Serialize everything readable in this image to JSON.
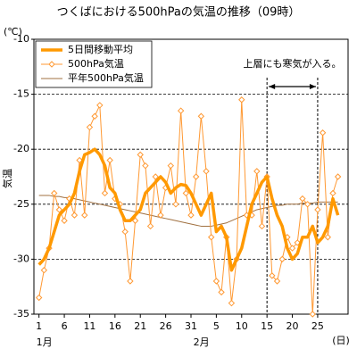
{
  "chart_data": {
    "type": "line",
    "title": "つくばにおける500hPaの気温の推移（09時）",
    "y_unit": "(℃)",
    "ylabel": "気温",
    "x_unit": "(日)",
    "months": [
      {
        "label": "1月",
        "x": 1
      },
      {
        "label": "2月",
        "x": 32
      }
    ],
    "x": [
      1,
      2,
      3,
      4,
      5,
      6,
      7,
      8,
      9,
      10,
      11,
      12,
      13,
      14,
      15,
      16,
      17,
      18,
      19,
      20,
      21,
      22,
      23,
      24,
      25,
      26,
      27,
      28,
      29,
      30,
      31,
      32,
      33,
      34,
      35,
      36,
      37,
      38,
      39,
      40,
      41,
      42,
      43,
      44,
      45,
      46,
      47,
      48,
      49,
      50,
      51,
      52,
      53,
      54,
      55,
      56,
      57,
      58,
      59,
      60
    ],
    "xlim": [
      0,
      62
    ],
    "xticks": [
      1,
      6,
      11,
      16,
      21,
      26,
      31,
      {
        "value": 36,
        "label": "5"
      },
      {
        "value": 41,
        "label": "10"
      },
      {
        "value": 46,
        "label": "15"
      },
      {
        "value": 51,
        "label": "20"
      },
      {
        "value": 56,
        "label": "25"
      }
    ],
    "ylim": [
      -35,
      -10
    ],
    "yticks": [
      -35,
      -30,
      -25,
      -20,
      -15,
      -10
    ],
    "grid": true,
    "series": [
      {
        "name": "5日間移動平均",
        "color": "#ff9900",
        "width": 3.5,
        "markers": false,
        "values": [
          -30.5,
          -30,
          -29,
          -27.5,
          -26,
          -25.5,
          -25,
          -24,
          -22,
          -20.5,
          -20.3,
          -20,
          -20.5,
          -21.5,
          -23.5,
          -24,
          -25.5,
          -26.5,
          -26.5,
          -26,
          -25.5,
          -24,
          -23.5,
          -23,
          -22.5,
          -23,
          -24,
          -23.5,
          -23.2,
          -23.3,
          -24,
          -25,
          -26,
          -25,
          -24,
          -27.5,
          -27,
          -28,
          -31,
          -30,
          -29,
          -27,
          -25,
          -24,
          -23,
          -22.5,
          -24.5,
          -26,
          -27,
          -29,
          -30,
          -29.5,
          -28,
          -28,
          -27,
          -28.5,
          -28,
          -27,
          -24.5,
          -26
        ]
      },
      {
        "name": "500hPa気温",
        "color": "#ff9933",
        "width": 1,
        "markers": true,
        "values": [
          -33.5,
          -31,
          -29,
          -24,
          -25.5,
          -26.5,
          -24.5,
          -26,
          -21,
          -26,
          -18,
          -17,
          -16,
          -24,
          -21,
          -24.5,
          -25,
          -27.5,
          -32,
          -26.5,
          -20.5,
          -21.5,
          -27,
          -22.5,
          -26,
          -23.5,
          -21.5,
          -25,
          -16.5,
          -24,
          -26,
          -22.5,
          -17,
          -22,
          -28,
          -32,
          -33,
          -28,
          -34,
          -30,
          -15.5,
          -26,
          -26,
          -22,
          -27,
          -22.5,
          -31.5,
          -32,
          -30,
          -28,
          -29,
          -28.5,
          -24.5,
          -25,
          -35,
          -25.5,
          -18.5,
          -28,
          -24,
          -22.5
        ]
      },
      {
        "name": "平年500hPa気温",
        "color": "#a07040",
        "width": 1,
        "markers": false,
        "values": [
          -24.2,
          -24.2,
          -24.2,
          -24.3,
          -24.3,
          -24.4,
          -24.4,
          -24.5,
          -24.6,
          -24.7,
          -24.8,
          -24.9,
          -25,
          -25.1,
          -25.2,
          -25.3,
          -25.4,
          -25.5,
          -25.6,
          -25.7,
          -25.8,
          -25.9,
          -26,
          -26.1,
          -26.2,
          -26.3,
          -26.4,
          -26.5,
          -26.6,
          -26.7,
          -26.8,
          -26.9,
          -27,
          -27,
          -27,
          -26.9,
          -26.8,
          -26.7,
          -26.5,
          -26.3,
          -26.1,
          -25.9,
          -25.7,
          -25.5,
          -25.4,
          -25.3,
          -25.2,
          -25.1,
          -25.1,
          -25,
          -25,
          -25,
          -24.9,
          -24.9,
          -24.9,
          -24.8,
          -24.8,
          -24.8,
          -24.8,
          -24.8
        ]
      }
    ],
    "legend": "upper-left",
    "annotation": {
      "text": "上層にも寒気が入る。",
      "x": [
        46,
        56
      ]
    }
  }
}
